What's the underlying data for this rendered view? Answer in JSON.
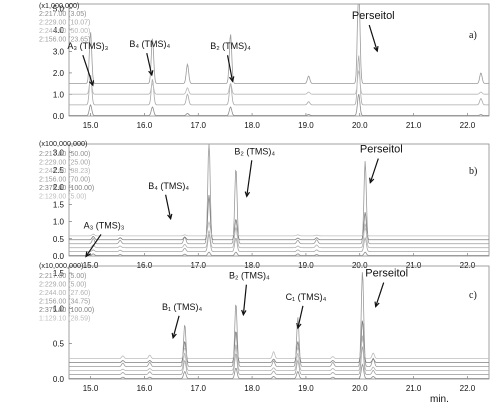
{
  "chart_data": [
    {
      "type": "line",
      "panel_label": "a)",
      "multiplier": "(x1,000,000)",
      "ylim": [
        0,
        5.2
      ],
      "xlim": [
        14.6,
        22.4
      ],
      "x_ticks": [
        "15.0",
        "16.0",
        "17.0",
        "18.0",
        "19.0",
        "20.0",
        "21.0",
        "22.0"
      ],
      "y_ticks": [
        "1.0",
        "2.0",
        "3.0",
        "4.0",
        "5.0"
      ],
      "legend": [
        "2:217.00 (3.05)",
        "2:229.00 (10.07)",
        "2:244.00 (50.00)",
        "2:156.00 (23.65)"
      ],
      "series_colors": [
        "#8c8c8c",
        "#a9a9a9",
        "#b8b8b8",
        "#9b9b9b"
      ],
      "peaks": [
        {
          "x": 15.0,
          "heights": [
            0.5,
            1.4,
            0.7,
            2.4
          ]
        },
        {
          "x": 16.15,
          "heights": [
            0.4,
            1.2,
            0.5,
            2.1
          ]
        },
        {
          "x": 16.8,
          "heights": [
            0.1,
            0.5,
            0.3,
            0.9
          ]
        },
        {
          "x": 17.6,
          "heights": [
            0.4,
            1.0,
            0.5,
            2.3
          ]
        },
        {
          "x": 19.05,
          "heights": [
            0.05,
            0.15,
            0.1,
            0.35
          ]
        },
        {
          "x": 19.98,
          "heights": [
            1.0,
            2.3,
            1.1,
            5.0
          ]
        },
        {
          "x": 22.25,
          "heights": [
            0.05,
            0.3,
            0.1,
            0.5
          ]
        }
      ],
      "annotations": [
        {
          "text": "A₃ (TMS)₃",
          "x": 14.95,
          "y": 3.1
        },
        {
          "text": "B₄ (TMS)₄",
          "x": 16.1,
          "y": 3.2
        },
        {
          "text": "B₂ (TMS)₄",
          "x": 17.6,
          "y": 3.1
        },
        {
          "text": "Perseitol",
          "x": 20.25,
          "y": 4.5
        }
      ]
    },
    {
      "type": "line",
      "panel_label": "b)",
      "multiplier": "(x100,000,000)",
      "ylim": [
        0,
        3.25
      ],
      "xlim": [
        14.6,
        22.4
      ],
      "x_ticks": [
        "15.0",
        "16.0",
        "17.0",
        "18.0",
        "19.0",
        "20.0",
        "21.0",
        "22.0"
      ],
      "y_ticks": [
        "0.5",
        "1.0",
        "1.5",
        "2.0",
        "2.5",
        "3.0"
      ],
      "legend": [
        "2:217.00 (50.00)",
        "2:229.00 (25.00)",
        "2:244.00 (98.23)",
        "2:156.00 (70.00)",
        "2:375.00 (100.00)",
        "2:129.00 (5.00)"
      ],
      "series_colors": [
        "#8f8f8f",
        "#a5a5a5",
        "#b3b3b3",
        "#9a9a9a",
        "#7f7f7f",
        "#bdbdbd"
      ],
      "peaks": [
        {
          "x": 15.05,
          "heights": [
            0.05,
            0.05,
            0.08,
            0.15,
            0.1,
            0.05
          ]
        },
        {
          "x": 15.55,
          "heights": [
            0.03,
            0.04,
            0.05,
            0.1,
            0.06,
            0.02
          ]
        },
        {
          "x": 16.75,
          "heights": [
            0.04,
            0.1,
            0.1,
            0.2,
            0.08,
            0.03
          ]
        },
        {
          "x": 17.2,
          "heights": [
            0.1,
            0.5,
            0.5,
            3.0,
            1.3,
            0.4
          ]
        },
        {
          "x": 17.7,
          "heights": [
            0.1,
            0.4,
            0.6,
            2.2,
            0.6,
            0.2
          ]
        },
        {
          "x": 18.85,
          "heights": [
            0.05,
            0.05,
            0.05,
            0.1,
            0.05,
            0.03
          ]
        },
        {
          "x": 19.2,
          "heights": [
            0.03,
            0.05,
            0.08,
            0.12,
            0.06,
            0.02
          ]
        },
        {
          "x": 20.1,
          "heights": [
            0.1,
            0.4,
            0.7,
            2.4,
            0.8,
            0.2
          ]
        }
      ],
      "annotations": [
        {
          "text": "A₃ (TMS)₃",
          "x": 15.25,
          "y": 0.8
        },
        {
          "text": "B₄ (TMS)₄",
          "x": 16.45,
          "y": 1.95
        },
        {
          "text": "B₂ (TMS)₄",
          "x": 18.05,
          "y": 2.95
        },
        {
          "text": "Perseitol",
          "x": 20.4,
          "y": 3.0
        }
      ]
    },
    {
      "type": "line",
      "panel_label": "c)",
      "multiplier": "(x10,000,000)",
      "ylim": [
        0,
        1.6
      ],
      "xlim": [
        14.6,
        22.4
      ],
      "x_ticks": [
        "15.0",
        "16.0",
        "17.0",
        "18.0",
        "19.0",
        "20.0",
        "21.0",
        "22.0"
      ],
      "y_ticks": [
        "0.5",
        "1.0",
        "1.5"
      ],
      "x_unit": "min.",
      "legend": [
        "2:217.00 (5.00)",
        "2:229.00 (5.00)",
        "2:244.00 (27.60)",
        "2:156.00 (34.75)",
        "2:375.00 (100.00)",
        "1:129.10 (28.59)"
      ],
      "series_colors": [
        "#8f8f8f",
        "#a5a5a5",
        "#b3b3b3",
        "#9a9a9a",
        "#7f7f7f",
        "#bdbdbd"
      ],
      "peaks": [
        {
          "x": 15.6,
          "heights": [
            0.02,
            0.03,
            0.02,
            0.05,
            0.03,
            0.04
          ]
        },
        {
          "x": 16.1,
          "heights": [
            0.02,
            0.04,
            0.03,
            0.06,
            0.03,
            0.05
          ]
        },
        {
          "x": 16.75,
          "heights": [
            0.1,
            0.2,
            0.25,
            0.6,
            0.3,
            0.15
          ]
        },
        {
          "x": 17.7,
          "heights": [
            0.15,
            0.3,
            0.35,
            0.9,
            0.45,
            0.2
          ]
        },
        {
          "x": 18.4,
          "heights": [
            0.03,
            0.05,
            0.04,
            0.08,
            0.05,
            0.1
          ]
        },
        {
          "x": 18.85,
          "heights": [
            0.1,
            0.2,
            0.25,
            0.7,
            0.3,
            0.15
          ]
        },
        {
          "x": 19.5,
          "heights": [
            0.02,
            0.03,
            0.03,
            0.06,
            0.03,
            0.03
          ]
        },
        {
          "x": 20.05,
          "heights": [
            0.2,
            0.4,
            0.5,
            1.35,
            0.6,
            0.3
          ]
        },
        {
          "x": 20.25,
          "heights": [
            0.03,
            0.06,
            0.05,
            0.12,
            0.05,
            0.08
          ]
        }
      ],
      "annotations": [
        {
          "text": "B₁ (TMS)₄",
          "x": 16.7,
          "y": 0.98
        },
        {
          "text": "B₂ (TMS)₄",
          "x": 17.95,
          "y": 1.42
        },
        {
          "text": "C₁ (TMS)₄",
          "x": 19.0,
          "y": 1.12
        },
        {
          "text": "Perseitol",
          "x": 20.5,
          "y": 1.45
        }
      ]
    }
  ]
}
